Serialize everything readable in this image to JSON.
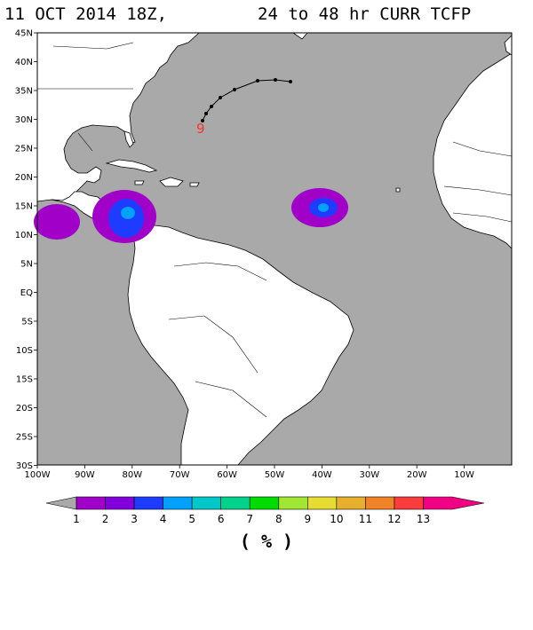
{
  "title": {
    "date": "11 OCT 2014 18Z,",
    "range": "24 to  48 hr CURR TCFP"
  },
  "map": {
    "lat_labels": [
      "45N",
      "40N",
      "35N",
      "30N",
      "25N",
      "20N",
      "15N",
      "10N",
      "5N",
      "EQ",
      "5S",
      "10S",
      "15S",
      "20S",
      "25S",
      "30S"
    ],
    "lon_labels": [
      "100W",
      "90W",
      "80W",
      "70W",
      "60W",
      "50W",
      "40W",
      "30W",
      "20W",
      "10W"
    ],
    "ocean_color": "#a9a9a9",
    "land_color": "#ffffff",
    "storm_marker_label": "9",
    "storm_marker_color": "#ff3030"
  },
  "colorbar": {
    "labels": [
      "1",
      "2",
      "3",
      "4",
      "5",
      "6",
      "7",
      "8",
      "9",
      "10",
      "11",
      "12",
      "13"
    ],
    "colors": [
      "#a000c8",
      "#8200dc",
      "#1e3cff",
      "#00a0ff",
      "#00c8c8",
      "#00d28c",
      "#00dc00",
      "#a0e632",
      "#e6dc32",
      "#e6af2d",
      "#f08228",
      "#fa3c3c",
      "#f00082"
    ],
    "units": "( % )"
  }
}
